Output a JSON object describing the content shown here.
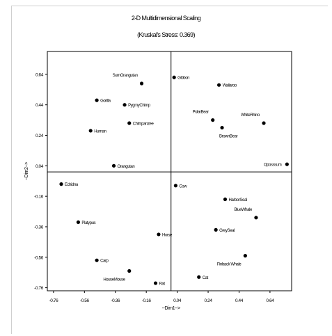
{
  "chart_data": {
    "type": "scatter",
    "title": "2-D Multidimensional Scaling",
    "subtitle": "(Kruskal's Stress: 0.369)",
    "xlabel": "--Dim1-->",
    "ylabel": "--Dim2-->",
    "xlim": [
      -0.8,
      0.78
    ],
    "ylim": [
      -0.78,
      0.79
    ],
    "x_ticks": [
      "-0.76",
      "-0.56",
      "-0.36",
      "-0.16",
      "0.04",
      "0.24",
      "0.44",
      "0.64"
    ],
    "x_tick_values": [
      -0.76,
      -0.56,
      -0.36,
      -0.16,
      0.04,
      0.24,
      0.44,
      0.64
    ],
    "y_ticks": [
      "0.64",
      "0.44",
      "0.24",
      "0.04",
      "-0.16",
      "-0.36",
      "-0.56",
      "-0.76"
    ],
    "y_tick_values": [
      0.64,
      0.44,
      0.24,
      0.04,
      -0.16,
      -0.36,
      -0.56,
      -0.76
    ],
    "grid": false,
    "points": [
      {
        "label": "SumOrangutan",
        "x": -0.19,
        "y": 0.58,
        "label_pos": "above-left"
      },
      {
        "label": "Gibbon",
        "x": 0.02,
        "y": 0.62,
        "label_pos": "right"
      },
      {
        "label": "Wallaroo",
        "x": 0.31,
        "y": 0.57,
        "label_pos": "right"
      },
      {
        "label": "Gorilla",
        "x": -0.48,
        "y": 0.47,
        "label_pos": "right"
      },
      {
        "label": "PygmyChimp",
        "x": -0.3,
        "y": 0.44,
        "label_pos": "right"
      },
      {
        "label": "Chimpanzee",
        "x": -0.27,
        "y": 0.32,
        "label_pos": "right"
      },
      {
        "label": "Human",
        "x": -0.52,
        "y": 0.27,
        "label_pos": "right"
      },
      {
        "label": "PolarBear",
        "x": 0.27,
        "y": 0.34,
        "label_pos": "above-left"
      },
      {
        "label": "WhiteRhino",
        "x": 0.6,
        "y": 0.32,
        "label_pos": "above-left"
      },
      {
        "label": "BrownBear",
        "x": 0.33,
        "y": 0.29,
        "label_pos": "below-right"
      },
      {
        "label": "Oposssum",
        "x": 0.75,
        "y": 0.05,
        "label_pos": "left"
      },
      {
        "label": "Orangutan",
        "x": -0.37,
        "y": 0.04,
        "label_pos": "right"
      },
      {
        "label": "Echidna",
        "x": -0.71,
        "y": -0.08,
        "label_pos": "right"
      },
      {
        "label": "Cow",
        "x": 0.03,
        "y": -0.09,
        "label_pos": "right"
      },
      {
        "label": "HarborSeal",
        "x": 0.35,
        "y": -0.18,
        "label_pos": "right"
      },
      {
        "label": "BlueWhale",
        "x": 0.55,
        "y": -0.3,
        "label_pos": "above-left"
      },
      {
        "label": "Platypus",
        "x": -0.6,
        "y": -0.33,
        "label_pos": "right"
      },
      {
        "label": "GreySeal",
        "x": 0.29,
        "y": -0.38,
        "label_pos": "right"
      },
      {
        "label": "Horse",
        "x": -0.08,
        "y": -0.41,
        "label_pos": "right"
      },
      {
        "label": "Carp",
        "x": -0.48,
        "y": -0.58,
        "label_pos": "right"
      },
      {
        "label": "Finback Whale",
        "x": 0.48,
        "y": -0.55,
        "label_pos": "below-left"
      },
      {
        "label": "HouseMouse",
        "x": -0.27,
        "y": -0.65,
        "label_pos": "below-left"
      },
      {
        "label": "Cat",
        "x": 0.18,
        "y": -0.69,
        "label_pos": "right"
      },
      {
        "label": "Rat",
        "x": -0.1,
        "y": -0.73,
        "label_pos": "right"
      }
    ]
  }
}
